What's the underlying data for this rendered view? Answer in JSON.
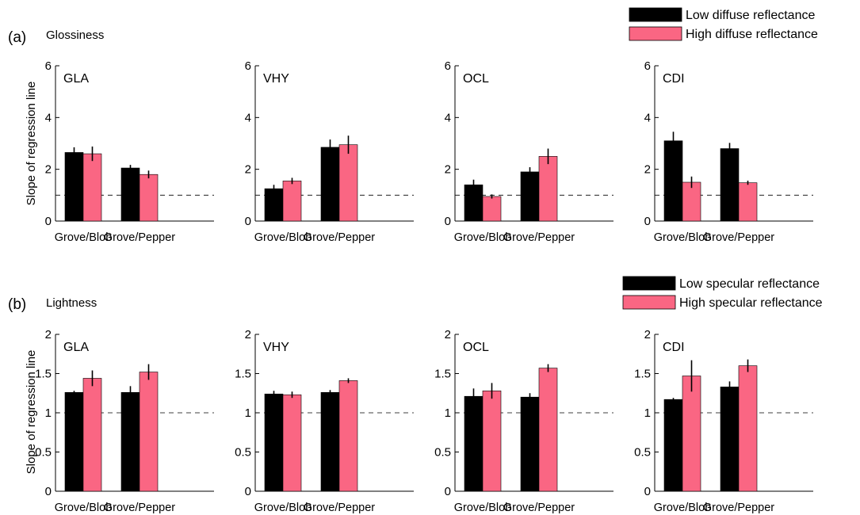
{
  "colors": {
    "low": "#000000",
    "high": "#fa6683",
    "axis": "#000000",
    "error": "#000000"
  },
  "chart_data": [
    {
      "type": "bar",
      "panel_label": "(a)",
      "panel_title": "Glossiness",
      "ylabel": "Slope of regression line",
      "ylim": [
        0,
        6
      ],
      "yticks": [
        "0",
        "2",
        "4",
        "6"
      ],
      "reference_line": 1,
      "legend": {
        "placement": "top-right",
        "entries": [
          "Low diffuse reflectance",
          "High diffuse reflectance"
        ]
      },
      "categories": [
        "Grove/Blob",
        "Grove/Pepper"
      ],
      "subplots": [
        {
          "name": "GLA",
          "series": [
            {
              "values": [
                2.65,
                2.05
              ],
              "errors": [
                0.2,
                0.12
              ]
            },
            {
              "values": [
                2.6,
                1.8
              ],
              "errors": [
                0.28,
                0.15
              ]
            }
          ]
        },
        {
          "name": "VHY",
          "series": [
            {
              "values": [
                1.25,
                2.85
              ],
              "errors": [
                0.15,
                0.3
              ]
            },
            {
              "values": [
                1.55,
                2.95
              ],
              "errors": [
                0.12,
                0.35
              ]
            }
          ]
        },
        {
          "name": "OCL",
          "series": [
            {
              "values": [
                1.4,
                1.9
              ],
              "errors": [
                0.2,
                0.18
              ]
            },
            {
              "values": [
                0.95,
                2.5
              ],
              "errors": [
                0.08,
                0.3
              ]
            }
          ]
        },
        {
          "name": "CDI",
          "series": [
            {
              "values": [
                3.1,
                2.8
              ],
              "errors": [
                0.35,
                0.22
              ]
            },
            {
              "values": [
                1.5,
                1.48
              ],
              "errors": [
                0.22,
                0.08
              ]
            }
          ]
        }
      ]
    },
    {
      "type": "bar",
      "panel_label": "(b)",
      "panel_title": "Lightness",
      "ylabel": "Slope of regression line",
      "ylim": [
        0,
        2
      ],
      "yticks": [
        "0",
        "0.5",
        "1",
        "1.5",
        "2"
      ],
      "reference_line": 1,
      "legend": {
        "placement": "top-right",
        "entries": [
          "Low specular reflectance",
          "High specular reflectance"
        ]
      },
      "categories": [
        "Grove/Blob",
        "Grove/Pepper"
      ],
      "subplots": [
        {
          "name": "GLA",
          "series": [
            {
              "values": [
                1.26,
                1.26
              ],
              "errors": [
                0.02,
                0.08
              ]
            },
            {
              "values": [
                1.44,
                1.52
              ],
              "errors": [
                0.1,
                0.1
              ]
            }
          ]
        },
        {
          "name": "VHY",
          "series": [
            {
              "values": [
                1.24,
                1.26
              ],
              "errors": [
                0.04,
                0.03
              ]
            },
            {
              "values": [
                1.23,
                1.41
              ],
              "errors": [
                0.04,
                0.03
              ]
            }
          ]
        },
        {
          "name": "OCL",
          "series": [
            {
              "values": [
                1.21,
                1.2
              ],
              "errors": [
                0.1,
                0.05
              ]
            },
            {
              "values": [
                1.28,
                1.57
              ],
              "errors": [
                0.1,
                0.05
              ]
            }
          ]
        },
        {
          "name": "CDI",
          "series": [
            {
              "values": [
                1.17,
                1.33
              ],
              "errors": [
                0.02,
                0.07
              ]
            },
            {
              "values": [
                1.47,
                1.6
              ],
              "errors": [
                0.2,
                0.08
              ]
            }
          ]
        }
      ]
    }
  ]
}
